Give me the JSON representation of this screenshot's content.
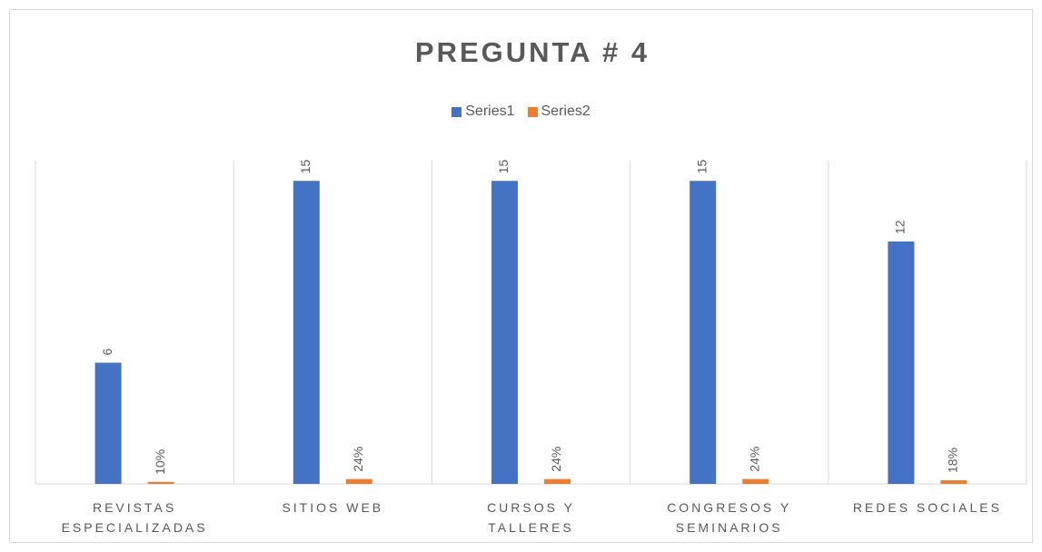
{
  "chart_data": {
    "type": "bar",
    "title": "PREGUNTA # 4",
    "categories": [
      "REVISTAS ESPECIALIZADAS",
      "SITIOS WEB",
      "CURSOS Y TALLERES",
      "CONGRESOS Y SEMINARIOS",
      "REDES SOCIALES"
    ],
    "series": [
      {
        "name": "Series1",
        "color": "#4472c4",
        "values": [
          6,
          15,
          15,
          15,
          12
        ]
      },
      {
        "name": "Series2",
        "color": "#ed7d31",
        "values": [
          0.1,
          0.24,
          0.24,
          0.24,
          0.18
        ],
        "value_labels": [
          "10%",
          "24%",
          "24%",
          "24%",
          "18%"
        ]
      }
    ],
    "ylim": [
      0,
      16
    ],
    "legend": "top"
  }
}
